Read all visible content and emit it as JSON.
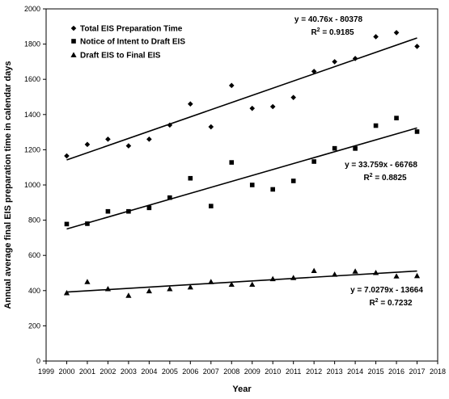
{
  "chart_data": {
    "type": "scatter",
    "xlabel": "Year",
    "ylabel": "Annual average final EIS preparation time in calendar days",
    "xlim": [
      1999,
      2018
    ],
    "ylim": [
      0,
      2000
    ],
    "x_ticks": [
      1999,
      2000,
      2001,
      2002,
      2003,
      2004,
      2005,
      2006,
      2007,
      2008,
      2009,
      2010,
      2011,
      2012,
      2013,
      2014,
      2015,
      2016,
      2017,
      2018
    ],
    "y_ticks": [
      0,
      200,
      400,
      600,
      800,
      1000,
      1200,
      1400,
      1600,
      1800,
      2000
    ],
    "grid": false,
    "legend_position": "top-left",
    "x": [
      2000,
      2001,
      2002,
      2003,
      2004,
      2005,
      2006,
      2007,
      2008,
      2009,
      2010,
      2011,
      2012,
      2013,
      2014,
      2015,
      2016,
      2017
    ],
    "series": [
      {
        "name": "Total  EIS Preparation Time",
        "marker": "diamond",
        "values": [
          1165,
          1230,
          1260,
          1222,
          1260,
          1340,
          1460,
          1330,
          1565,
          1435,
          1445,
          1497,
          1645,
          1700,
          1718,
          1842,
          1865,
          1787
        ],
        "trendline": {
          "slope": 40.76,
          "intercept": -80378,
          "equation": "y = 40.76x - 80378",
          "r2_label": "R",
          "r2_sup": "2",
          "r2_value": " = 0.9185"
        }
      },
      {
        "name": "Notice of Intent to Draft EIS",
        "marker": "square",
        "values": [
          778,
          780,
          850,
          850,
          870,
          928,
          1038,
          880,
          1128,
          1000,
          975,
          1023,
          1133,
          1208,
          1207,
          1337,
          1380,
          1303
        ],
        "trendline": {
          "slope": 33.759,
          "intercept": -66768,
          "equation": "y = 33.759x - 66768",
          "r2_label": "R",
          "r2_sup": "2",
          "r2_value": " = 0.8825"
        }
      },
      {
        "name": "Draft EIS to Final EIS",
        "marker": "triangle",
        "values": [
          387,
          450,
          410,
          372,
          398,
          410,
          420,
          450,
          435,
          435,
          467,
          473,
          513,
          492,
          510,
          502,
          482,
          484
        ],
        "trendline": {
          "slope": 7.0279,
          "intercept": -13664,
          "equation": "y = 7.0279x - 13664",
          "r2_label": "R",
          "r2_sup": "2",
          "r2_value": " = 0.7232"
        }
      }
    ]
  }
}
